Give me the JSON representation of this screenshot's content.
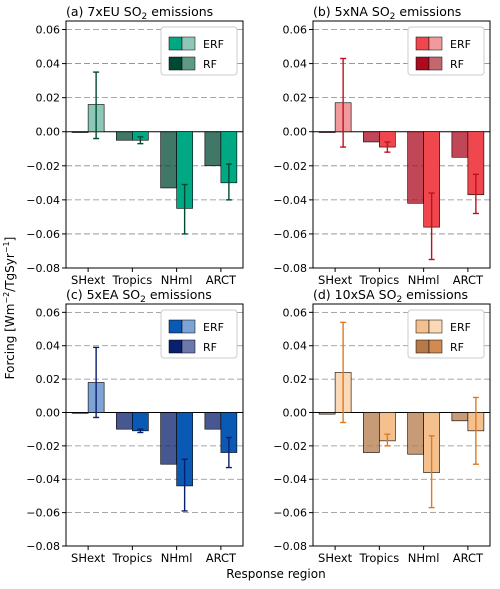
{
  "figure": {
    "ylabel_parts": [
      "Forcing [Wm",
      "−2",
      "/TgSyr",
      "−1",
      "]"
    ],
    "xlabel": "Response region"
  },
  "chart_data": [
    {
      "type": "bar",
      "title_parts": [
        "(a)  7xEU SO",
        "2",
        " emissions"
      ],
      "categories": [
        "SHext",
        "Tropics",
        "NHml",
        "ARCT"
      ],
      "ylim": [
        -0.08,
        0.065
      ],
      "yticks": [
        -0.08,
        -0.06,
        -0.04,
        -0.02,
        0.0,
        0.02,
        0.04,
        0.06
      ],
      "ytick_labels": [
        "−0.08",
        "−0.06",
        "−0.04",
        "−0.02",
        "0.00",
        "0.02",
        "0.04",
        "0.06"
      ],
      "grid": "horizontal dashed",
      "legend_position": "top-right",
      "colors": {
        "rf": "#004a33",
        "erf": "#00a884",
        "rf_legend_light": "#5e9a86",
        "erf_legend_light": "#8ec7b8",
        "error_bar": "#004a33"
      },
      "series": [
        {
          "name": "RF",
          "values": [
            0.0,
            -0.005,
            -0.033,
            -0.02
          ],
          "error_low": [
            null,
            null,
            null,
            null
          ],
          "error_high": [
            null,
            null,
            null,
            null
          ]
        },
        {
          "name": "ERF",
          "values": [
            0.016,
            -0.005,
            -0.045,
            -0.03
          ],
          "error_low": [
            -0.004,
            -0.007,
            -0.06,
            -0.04
          ],
          "error_high": [
            0.035,
            -0.003,
            -0.031,
            -0.019
          ]
        }
      ]
    },
    {
      "type": "bar",
      "title_parts": [
        "(b)  5xNA SO",
        "2",
        " emissions"
      ],
      "categories": [
        "SHext",
        "Tropics",
        "NHml",
        "ARCT"
      ],
      "ylim": [
        -0.08,
        0.065
      ],
      "yticks": [
        -0.08,
        -0.06,
        -0.04,
        -0.02,
        0.0,
        0.02,
        0.04,
        0.06
      ],
      "ytick_labels": [
        "−0.08",
        "−0.06",
        "−0.04",
        "−0.02",
        "0.00",
        "0.02",
        "0.04",
        "0.06"
      ],
      "grid": "horizontal dashed",
      "legend_position": "top-right",
      "colors": {
        "rf": "#ab0a1f",
        "erf": "#f0464d",
        "rf_legend_light": "#c46770",
        "erf_legend_light": "#f09a9d",
        "error_bar": "#c0101c"
      },
      "series": [
        {
          "name": "RF",
          "values": [
            0.0,
            -0.006,
            -0.042,
            -0.015
          ],
          "error_low": [
            null,
            null,
            null,
            null
          ],
          "error_high": [
            null,
            null,
            null,
            null
          ]
        },
        {
          "name": "ERF",
          "values": [
            0.017,
            -0.009,
            -0.056,
            -0.037
          ],
          "error_low": [
            -0.009,
            -0.012,
            -0.075,
            -0.048
          ],
          "error_high": [
            0.043,
            -0.006,
            -0.036,
            -0.025
          ]
        }
      ]
    },
    {
      "type": "bar",
      "title_parts": [
        "(c)  5xEA SO",
        "2",
        " emissions"
      ],
      "categories": [
        "SHext",
        "Tropics",
        "NHml",
        "ARCT"
      ],
      "ylim": [
        -0.08,
        0.065
      ],
      "yticks": [
        -0.08,
        -0.06,
        -0.04,
        -0.02,
        0.0,
        0.02,
        0.04,
        0.06
      ],
      "ytick_labels": [
        "−0.08",
        "−0.06",
        "−0.04",
        "−0.02",
        "0.00",
        "0.02",
        "0.04",
        "0.06"
      ],
      "grid": "horizontal dashed",
      "legend_position": "top-right",
      "colors": {
        "rf": "#0a1f6d",
        "erf": "#0a59b4",
        "rf_legend_light": "#6a78ad",
        "erf_legend_light": "#7fa3d4",
        "error_bar": "#0a1f6d"
      },
      "series": [
        {
          "name": "RF",
          "values": [
            0.0,
            -0.01,
            -0.031,
            -0.01
          ],
          "error_low": [
            null,
            null,
            null,
            null
          ],
          "error_high": [
            null,
            null,
            null,
            null
          ]
        },
        {
          "name": "ERF",
          "values": [
            0.018,
            -0.011,
            -0.044,
            -0.024
          ],
          "error_low": [
            -0.003,
            -0.012,
            -0.059,
            -0.033
          ],
          "error_high": [
            0.039,
            -0.01,
            -0.028,
            -0.015
          ]
        }
      ]
    },
    {
      "type": "bar",
      "title_parts": [
        "(d)  10xSA SO",
        "2",
        " emissions"
      ],
      "categories": [
        "SHext",
        "Tropics",
        "NHml",
        "ARCT"
      ],
      "ylim": [
        -0.08,
        0.065
      ],
      "yticks": [
        -0.08,
        -0.06,
        -0.04,
        -0.02,
        0.0,
        0.02,
        0.04,
        0.06
      ],
      "ytick_labels": [
        "−0.08",
        "−0.06",
        "−0.04",
        "−0.02",
        "0.00",
        "0.02",
        "0.04",
        "0.06"
      ],
      "grid": "horizontal dashed",
      "legend_position": "top-right",
      "colors": {
        "rf": "#b5794a",
        "erf": "#f3c08e",
        "rf_legend_light": "#d08a52",
        "erf_legend_light": "#f9d9b6",
        "error_bar": "#e07a20"
      },
      "series": [
        {
          "name": "RF",
          "values": [
            -0.001,
            -0.024,
            -0.025,
            -0.005
          ],
          "error_low": [
            null,
            null,
            null,
            null
          ],
          "error_high": [
            null,
            null,
            null,
            null
          ]
        },
        {
          "name": "ERF",
          "values": [
            0.024,
            -0.017,
            -0.036,
            -0.011
          ],
          "error_low": [
            -0.006,
            -0.02,
            -0.057,
            -0.031
          ],
          "error_high": [
            0.054,
            -0.013,
            -0.014,
            0.009
          ]
        }
      ]
    }
  ]
}
